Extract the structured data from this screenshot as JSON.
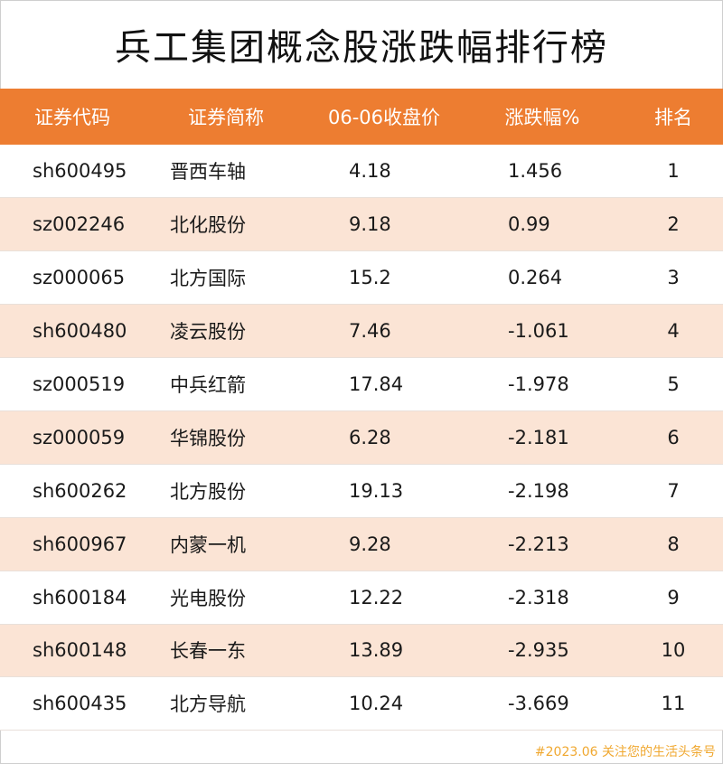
{
  "title": "兵工集团概念股涨跌幅排行榜",
  "columns": [
    "证券代码",
    "证券简称",
    "06-06收盘价",
    "涨跌幅%",
    "排名"
  ],
  "rows": [
    {
      "code": "sh600495",
      "name": "晋西车轴",
      "price": "4.18",
      "change": "1.456",
      "rank": "1"
    },
    {
      "code": "sz002246",
      "name": "北化股份",
      "price": "9.18",
      "change": "0.99",
      "rank": "2"
    },
    {
      "code": "sz000065",
      "name": "北方国际",
      "price": "15.2",
      "change": "0.264",
      "rank": "3"
    },
    {
      "code": "sh600480",
      "name": "凌云股份",
      "price": "7.46",
      "change": "-1.061",
      "rank": "4"
    },
    {
      "code": "sz000519",
      "name": "中兵红箭",
      "price": "17.84",
      "change": "-1.978",
      "rank": "5"
    },
    {
      "code": "sz000059",
      "name": "华锦股份",
      "price": "6.28",
      "change": "-2.181",
      "rank": "6"
    },
    {
      "code": "sh600262",
      "name": "北方股份",
      "price": "19.13",
      "change": "-2.198",
      "rank": "7"
    },
    {
      "code": "sh600967",
      "name": "内蒙一机",
      "price": "9.28",
      "change": "-2.213",
      "rank": "8"
    },
    {
      "code": "sh600184",
      "name": "光电股份",
      "price": "12.22",
      "change": "-2.318",
      "rank": "9"
    },
    {
      "code": "sh600148",
      "name": "长春一东",
      "price": "13.89",
      "change": "-2.935",
      "rank": "10"
    },
    {
      "code": "sh600435",
      "name": "北方导航",
      "price": "10.24",
      "change": "-3.669",
      "rank": "11"
    }
  ],
  "watermark": "#2023.06 关注您的生活头条号",
  "colors": {
    "header_bg": "#ed7d31",
    "alt_row_bg": "#fbe4d5",
    "watermark": "#f0a830"
  }
}
